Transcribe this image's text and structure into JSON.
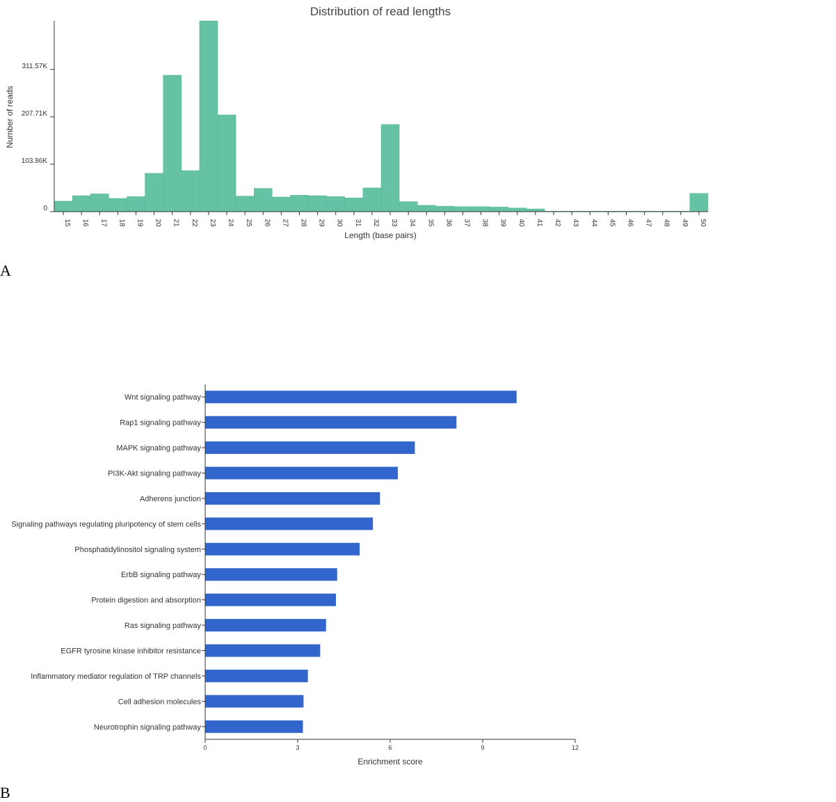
{
  "panels": {
    "a_label": "A",
    "b_label": "B"
  },
  "colors": {
    "hist_bar": "#66c2a4",
    "hist_bar_edge": "#56b894",
    "enrich_bar": "#3366cc",
    "axis": "#333333",
    "text": "#333333"
  },
  "chart_data": [
    {
      "type": "bar",
      "title": "Distribution of read lengths",
      "xlabel": "Length (base pairs)",
      "ylabel": "Number of reads",
      "categories": [
        "15",
        "16",
        "17",
        "18",
        "19",
        "20",
        "21",
        "22",
        "23",
        "24",
        "25",
        "26",
        "27",
        "28",
        "29",
        "30",
        "31",
        "32",
        "33",
        "34",
        "35",
        "36",
        "37",
        "38",
        "39",
        "40",
        "41",
        "42",
        "43",
        "44",
        "45",
        "46",
        "47",
        "48",
        "49",
        "50"
      ],
      "values": [
        23000,
        35000,
        39000,
        29000,
        33000,
        84000,
        299000,
        90000,
        418000,
        212000,
        34000,
        51000,
        32000,
        36000,
        35000,
        33000,
        30000,
        52000,
        191000,
        22000,
        14000,
        12000,
        11000,
        11000,
        10000,
        8000,
        6000,
        1000,
        1000,
        1000,
        1000,
        1000,
        1000,
        1000,
        1000,
        40000
      ],
      "yticks": [
        0,
        103860,
        207710,
        311570
      ],
      "ytick_labels": [
        "0",
        "103.86K",
        "207.71K",
        "311.57K"
      ],
      "ylim": [
        0,
        418000
      ]
    },
    {
      "type": "bar",
      "orientation": "horizontal",
      "xlabel": "Enrichment score",
      "categories": [
        "Wnt signaling pathway",
        "Rap1 signaling pathway",
        "MAPK signaling pathway",
        "PI3K-Akt signaling pathway",
        "Adherens junction",
        "Signaling pathways regulating pluripotency of stem cells",
        "Phosphatidylinositol signaling system",
        "ErbB signaling pathway",
        "Protein digestion and absorption",
        "Ras signaling pathway",
        "EGFR tyrosine kinase inhibitor resistance",
        "Inflammatory mediator regulation of TRP channels",
        "Cell adhesion molecules",
        "Neurotrophin signaling pathway"
      ],
      "values": [
        10.1,
        8.15,
        6.8,
        6.25,
        5.67,
        5.44,
        5.01,
        4.28,
        4.24,
        3.92,
        3.73,
        3.33,
        3.19,
        3.17
      ],
      "xticks": [
        0,
        3,
        6,
        9,
        12
      ],
      "xlim": [
        0,
        12
      ]
    }
  ]
}
